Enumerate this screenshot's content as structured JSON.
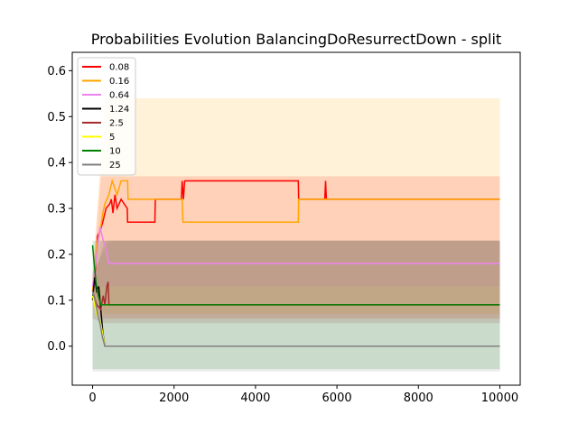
{
  "chart_data": {
    "type": "line",
    "title": "Probabilities Evolution BalancingDoResurrectDown  - split",
    "xlabel": "",
    "ylabel": "",
    "xlim": [
      -500,
      10500
    ],
    "ylim": [
      -0.085,
      0.64
    ],
    "x_ticks": [
      0,
      2000,
      4000,
      6000,
      8000,
      10000
    ],
    "y_ticks": [
      0.0,
      0.1,
      0.2,
      0.3,
      0.4,
      0.5,
      0.6
    ],
    "grid": false,
    "legend_position": "top-left",
    "series": [
      {
        "name": "0.08",
        "color": "#ff0000",
        "points": [
          [
            0,
            0.12
          ],
          [
            60,
            0.16
          ],
          [
            120,
            0.24
          ],
          [
            180,
            0.25
          ],
          [
            250,
            0.27
          ],
          [
            330,
            0.3
          ],
          [
            420,
            0.31
          ],
          [
            460,
            0.32
          ],
          [
            500,
            0.29
          ],
          [
            550,
            0.33
          ],
          [
            600,
            0.3
          ],
          [
            700,
            0.32
          ],
          [
            850,
            0.3
          ],
          [
            860,
            0.27
          ],
          [
            1530,
            0.27
          ],
          [
            1540,
            0.32
          ],
          [
            2180,
            0.32
          ],
          [
            2200,
            0.36
          ],
          [
            2230,
            0.32
          ],
          [
            2260,
            0.36
          ],
          [
            5050,
            0.36
          ],
          [
            5060,
            0.32
          ],
          [
            5700,
            0.32
          ],
          [
            5720,
            0.36
          ],
          [
            5740,
            0.32
          ],
          [
            10000,
            0.32
          ]
        ],
        "band": [
          [
            0,
            0.1,
            0.15
          ],
          [
            200,
            0.06,
            0.37
          ],
          [
            10000,
            0.06,
            0.37
          ]
        ]
      },
      {
        "name": "0.16",
        "color": "#ffa500",
        "points": [
          [
            0,
            0.12
          ],
          [
            100,
            0.22
          ],
          [
            200,
            0.26
          ],
          [
            250,
            0.29
          ],
          [
            300,
            0.31
          ],
          [
            400,
            0.33
          ],
          [
            480,
            0.36
          ],
          [
            600,
            0.33
          ],
          [
            700,
            0.36
          ],
          [
            860,
            0.36
          ],
          [
            870,
            0.32
          ],
          [
            1530,
            0.32
          ],
          [
            2200,
            0.32
          ],
          [
            2220,
            0.27
          ],
          [
            5050,
            0.27
          ],
          [
            5060,
            0.32
          ],
          [
            10000,
            0.32
          ]
        ],
        "band": [
          [
            0,
            0.1,
            0.16
          ],
          [
            300,
            0.07,
            0.54
          ],
          [
            10000,
            0.07,
            0.54
          ]
        ]
      },
      {
        "name": "0.64",
        "color": "#ee82ee",
        "points": [
          [
            0,
            0.13
          ],
          [
            100,
            0.2
          ],
          [
            180,
            0.26
          ],
          [
            260,
            0.23
          ],
          [
            330,
            0.21
          ],
          [
            400,
            0.18
          ],
          [
            10000,
            0.18
          ]
        ],
        "band": [
          [
            0,
            0.12,
            0.15
          ],
          [
            200,
            0.13,
            0.23
          ],
          [
            10000,
            0.13,
            0.23
          ]
        ]
      },
      {
        "name": "1.24",
        "color": "#000000",
        "points": [
          [
            0,
            0.1
          ],
          [
            50,
            0.15
          ],
          [
            100,
            0.12
          ],
          [
            150,
            0.13
          ],
          [
            200,
            0.08
          ],
          [
            250,
            0.03
          ],
          [
            300,
            0.0
          ],
          [
            10000,
            0.0
          ]
        ],
        "band": []
      },
      {
        "name": "2.5",
        "color": "#a52a2a",
        "points": [
          [
            0,
            0.12
          ],
          [
            100,
            0.09
          ],
          [
            200,
            0.08
          ],
          [
            260,
            0.11
          ],
          [
            300,
            0.09
          ],
          [
            350,
            0.13
          ],
          [
            380,
            0.14
          ],
          [
            400,
            0.09
          ],
          [
            10000,
            0.09
          ]
        ],
        "band": [
          [
            0,
            0.06,
            0.14
          ],
          [
            300,
            0.05,
            0.23
          ],
          [
            10000,
            0.05,
            0.23
          ]
        ]
      },
      {
        "name": "5",
        "color": "#ffff00",
        "points": [
          [
            0,
            0.11
          ],
          [
            100,
            0.07
          ],
          [
            200,
            0.05
          ],
          [
            300,
            0.0
          ],
          [
            10000,
            0.0
          ]
        ],
        "band": []
      },
      {
        "name": "10",
        "color": "#008000",
        "points": [
          [
            0,
            0.22
          ],
          [
            40,
            0.18
          ],
          [
            80,
            0.14
          ],
          [
            140,
            0.11
          ],
          [
            200,
            0.09
          ],
          [
            10000,
            0.09
          ]
        ],
        "band": [
          [
            0,
            -0.05,
            0.23
          ],
          [
            200,
            -0.05,
            0.23
          ],
          [
            10000,
            -0.05,
            0.23
          ]
        ]
      },
      {
        "name": "25",
        "color": "#808080",
        "points": [
          [
            0,
            0.12
          ],
          [
            60,
            0.1
          ],
          [
            120,
            0.07
          ],
          [
            180,
            0.05
          ],
          [
            240,
            0.02
          ],
          [
            300,
            0.0
          ],
          [
            10000,
            0.0
          ]
        ],
        "band": [
          [
            0,
            -0.055,
            0.16
          ],
          [
            400,
            -0.055,
            0.23
          ],
          [
            10000,
            -0.055,
            0.23
          ]
        ]
      }
    ]
  }
}
